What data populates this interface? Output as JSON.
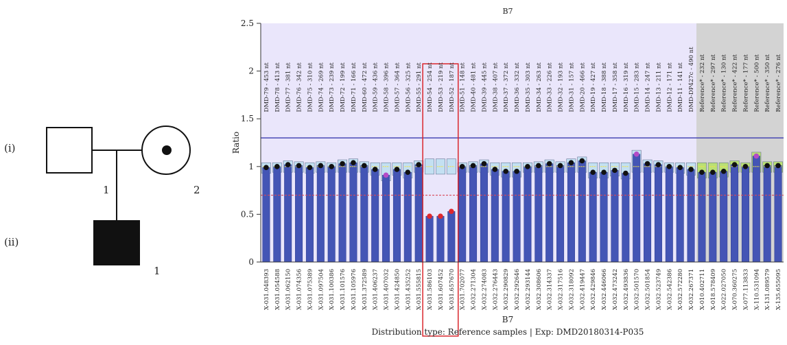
{
  "pedigree": {
    "generations": [
      "(i)",
      "(ii)"
    ],
    "individuals": [
      {
        "generation": "(i)",
        "number": "1",
        "sex": "male",
        "status": "unaffected"
      },
      {
        "generation": "(i)",
        "number": "2",
        "sex": "female",
        "status": "carrier"
      },
      {
        "generation": "(ii)",
        "number": "1",
        "sex": "male",
        "status": "affected"
      }
    ]
  },
  "chart_data": {
    "type": "bar",
    "title": "B7",
    "xlabel": "B7",
    "ylabel": "Ratio",
    "footer": "Distribution type: Reference samples | Exp: DMD20180314-P035",
    "ylim": [
      0,
      2.5
    ],
    "yticks": [
      "0",
      "0.5",
      "1",
      "1.5",
      "2",
      "2.5"
    ],
    "upper_threshold": 1.3,
    "lower_threshold": 0.7,
    "highlight_range": [
      "DMD-54 - 254 nt",
      "DMD-52 - 187 nt"
    ],
    "colors": {
      "plot_bg": "#eae6fb",
      "reference_bg": "#d3d3d3",
      "bar": "#4455b5",
      "upper_line": "#3b3bb0",
      "lower_line": "#d84a5a",
      "highlight_box": "#d9252b",
      "point_normal": "#111111",
      "point_deleted": "#e0282d",
      "point_outlier": "#b54bc7"
    },
    "probes": [
      {
        "label": "DMD-79 - 453 nt",
        "x": "X-031.048393",
        "value": 0.99,
        "ref": false
      },
      {
        "label": "DMD-78 - 413 nt",
        "x": "X-031.054588",
        "value": 1.0,
        "ref": false
      },
      {
        "label": "DMD-77 - 381 nt",
        "x": "X-031.062150",
        "value": 1.02,
        "ref": false
      },
      {
        "label": "DMD-76 - 342 nt",
        "x": "X-031.074356",
        "value": 1.01,
        "ref": false
      },
      {
        "label": "DMD-75 - 310 nt",
        "x": "X-031.075389",
        "value": 0.99,
        "ref": false
      },
      {
        "label": "DMD-74 - 269 nt",
        "x": "X-031.097504",
        "value": 1.01,
        "ref": false
      },
      {
        "label": "DMD-73 - 239 nt",
        "x": "X-031.100386",
        "value": 1.0,
        "ref": false
      },
      {
        "label": "DMD-72 - 199 nt",
        "x": "X-031.101576",
        "value": 1.03,
        "ref": false
      },
      {
        "label": "DMD-71 - 166 nt",
        "x": "X-031.105976",
        "value": 1.04,
        "ref": false
      },
      {
        "label": "DMD-60 - 472 nt",
        "x": "X-031.372589",
        "value": 1.01,
        "ref": false
      },
      {
        "label": "DMD-59 - 436 nt",
        "x": "X-031.406237",
        "value": 0.97,
        "ref": false
      },
      {
        "label": "DMD-58 - 396 nt",
        "x": "X-031.407032",
        "value": 0.91,
        "ref": false
      },
      {
        "label": "DMD-57 - 364 nt",
        "x": "X-031.424850",
        "value": 0.97,
        "ref": false
      },
      {
        "label": "DMD-56 - 325 nt",
        "x": "X-031.435252",
        "value": 0.94,
        "ref": false
      },
      {
        "label": "DMD-55 - 291 nt",
        "x": "X-031.555815",
        "value": 1.02,
        "ref": false
      },
      {
        "label": "DMD-54 - 254 nt",
        "x": "X-031.586103",
        "value": 0.48,
        "ref": false
      },
      {
        "label": "DMD-53 - 219 nt",
        "x": "X-031.607452",
        "value": 0.48,
        "ref": false
      },
      {
        "label": "DMD-52 - 187 nt",
        "x": "X-031.657670",
        "value": 0.53,
        "ref": false
      },
      {
        "label": "DMD-51 - 148 nt",
        "x": "X-031.702077",
        "value": 1.0,
        "ref": false
      },
      {
        "label": "DMD-40 - 481 nt",
        "x": "X-032.271304",
        "value": 1.01,
        "ref": false
      },
      {
        "label": "DMD-39 - 445 nt",
        "x": "X-032.274083",
        "value": 1.03,
        "ref": false
      },
      {
        "label": "DMD-38 - 407 nt",
        "x": "X-032.276443",
        "value": 0.97,
        "ref": false
      },
      {
        "label": "DMD-37 - 372 nt",
        "x": "X-032.290829",
        "value": 0.95,
        "ref": false
      },
      {
        "label": "DMD-36 - 332 nt",
        "x": "X-032.292646",
        "value": 0.95,
        "ref": false
      },
      {
        "label": "DMD-35 - 303 nt",
        "x": "X-032.293144",
        "value": 1.0,
        "ref": false
      },
      {
        "label": "DMD-34 - 263 nt",
        "x": "X-032.308606",
        "value": 1.01,
        "ref": false
      },
      {
        "label": "DMD-33 - 226 nt",
        "x": "X-032.314337",
        "value": 1.03,
        "ref": false
      },
      {
        "label": "DMD-32 - 193 nt",
        "x": "X-032.317516",
        "value": 1.01,
        "ref": false
      },
      {
        "label": "DMD-31 - 157 nt",
        "x": "X-032.318092",
        "value": 1.04,
        "ref": false
      },
      {
        "label": "DMD-20 - 466 nt",
        "x": "X-032.419447",
        "value": 1.06,
        "ref": false
      },
      {
        "label": "DMD-19 - 427 nt",
        "x": "X-032.429846",
        "value": 0.94,
        "ref": false
      },
      {
        "label": "DMD-18 - 388 nt",
        "x": "X-032.446066",
        "value": 0.94,
        "ref": false
      },
      {
        "label": "DMD-17 - 358 nt",
        "x": "X-032.473242",
        "value": 0.96,
        "ref": false
      },
      {
        "label": "DMD-16 - 319 nt",
        "x": "X-032.493836",
        "value": 0.93,
        "ref": false
      },
      {
        "label": "DMD-15 - 283 nt",
        "x": "X-032.501570",
        "value": 1.13,
        "ref": false
      },
      {
        "label": "DMD-14 - 247 nt",
        "x": "X-032.501854",
        "value": 1.03,
        "ref": false
      },
      {
        "label": "DMD-13 - 211 nt",
        "x": "X-032.523749",
        "value": 1.02,
        "ref": false
      },
      {
        "label": "DMD-12 - 171 nt",
        "x": "X-032.542386",
        "value": 1.0,
        "ref": false
      },
      {
        "label": "DMD-11 - 141 nt",
        "x": "X-032.572280",
        "value": 0.99,
        "ref": false
      },
      {
        "label": "DMD-DP427c - 490 nt",
        "x": "X-032.267371",
        "value": 0.97,
        "ref": false
      },
      {
        "label": "Reference* - 232 nt",
        "x": "X-010.402711",
        "value": 0.94,
        "ref": true
      },
      {
        "label": "Reference* - 297 nt",
        "x": "X-018.578409",
        "value": 0.94,
        "ref": true
      },
      {
        "label": "Reference* - 130 nt",
        "x": "X-022.027050",
        "value": 0.95,
        "ref": true
      },
      {
        "label": "Reference* - 422 nt",
        "x": "X-070.360275",
        "value": 1.02,
        "ref": true
      },
      {
        "label": "Reference* - 177 nt",
        "x": "X-077.113833",
        "value": 1.0,
        "ref": true
      },
      {
        "label": "Reference* - 500 nt",
        "x": "X-110.531094",
        "value": 1.11,
        "ref": true
      },
      {
        "label": "Reference* - 350 nt",
        "x": "X-131.089579",
        "value": 1.01,
        "ref": true
      },
      {
        "label": "Reference* - 276 nt",
        "x": "X-135.655095",
        "value": 1.01,
        "ref": true
      }
    ]
  }
}
